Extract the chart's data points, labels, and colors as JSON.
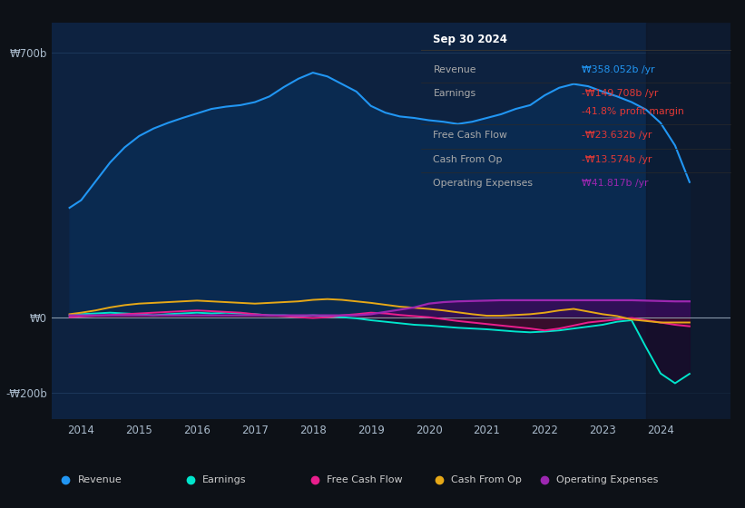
{
  "bg_color": "#0d1117",
  "plot_bg_color": "#0d2240",
  "grid_color": "#1e3a5f",
  "years": [
    2013.8,
    2014.0,
    2014.25,
    2014.5,
    2014.75,
    2015.0,
    2015.25,
    2015.5,
    2015.75,
    2016.0,
    2016.25,
    2016.5,
    2016.75,
    2017.0,
    2017.25,
    2017.5,
    2017.75,
    2018.0,
    2018.25,
    2018.5,
    2018.75,
    2019.0,
    2019.25,
    2019.5,
    2019.75,
    2020.0,
    2020.25,
    2020.5,
    2020.75,
    2021.0,
    2021.25,
    2021.5,
    2021.75,
    2022.0,
    2022.25,
    2022.5,
    2022.75,
    2023.0,
    2023.25,
    2023.5,
    2023.75,
    2024.0,
    2024.25,
    2024.5
  ],
  "revenue": [
    290,
    310,
    360,
    410,
    450,
    480,
    500,
    515,
    528,
    540,
    552,
    558,
    562,
    570,
    585,
    610,
    632,
    648,
    638,
    618,
    598,
    560,
    542,
    532,
    528,
    522,
    518,
    512,
    518,
    528,
    538,
    552,
    562,
    588,
    608,
    618,
    612,
    598,
    585,
    570,
    550,
    515,
    455,
    358
  ],
  "earnings": [
    5,
    8,
    10,
    12,
    10,
    8,
    5,
    8,
    10,
    12,
    10,
    12,
    10,
    8,
    5,
    5,
    3,
    5,
    3,
    0,
    -3,
    -8,
    -12,
    -16,
    -20,
    -22,
    -25,
    -28,
    -30,
    -32,
    -35,
    -38,
    -40,
    -38,
    -35,
    -30,
    -25,
    -20,
    -12,
    -8,
    -80,
    -149,
    -175,
    -150
  ],
  "free_cash_flow": [
    0,
    2,
    4,
    6,
    8,
    10,
    12,
    14,
    16,
    18,
    16,
    14,
    12,
    8,
    5,
    3,
    0,
    -2,
    0,
    5,
    8,
    12,
    10,
    6,
    3,
    0,
    -5,
    -10,
    -14,
    -18,
    -22,
    -26,
    -30,
    -35,
    -30,
    -22,
    -14,
    -10,
    -6,
    -2,
    -8,
    -14,
    -20,
    -24
  ],
  "cash_from_op": [
    8,
    12,
    18,
    26,
    32,
    36,
    38,
    40,
    42,
    44,
    42,
    40,
    38,
    36,
    38,
    40,
    42,
    46,
    48,
    46,
    42,
    38,
    33,
    28,
    25,
    22,
    18,
    13,
    8,
    4,
    4,
    6,
    8,
    12,
    18,
    22,
    15,
    8,
    3,
    -6,
    -10,
    -14,
    -14,
    -14
  ],
  "operating_expenses": [
    5,
    5,
    5,
    5,
    5,
    5,
    5,
    5,
    5,
    5,
    5,
    5,
    5,
    5,
    5,
    5,
    5,
    5,
    5,
    5,
    5,
    8,
    14,
    20,
    26,
    36,
    40,
    42,
    43,
    44,
    45,
    45,
    45,
    45,
    45,
    45,
    45,
    45,
    45,
    45,
    44,
    43,
    42,
    42
  ],
  "revenue_color": "#2196f3",
  "earnings_color": "#00e5cc",
  "fcf_color": "#e91e8c",
  "cashop_color": "#e6a817",
  "opex_color": "#9c27b0",
  "revenue_fill": "#0a2a50",
  "ylim_min": -270,
  "ylim_max": 780,
  "yticks": [
    -200,
    0,
    700
  ],
  "ytick_labels": [
    "-₩200b",
    "₩0",
    "₩700b"
  ],
  "xlim_min": 2013.5,
  "xlim_max": 2025.2,
  "xticks": [
    2014,
    2015,
    2016,
    2017,
    2018,
    2019,
    2020,
    2021,
    2022,
    2023,
    2024
  ],
  "tooltip": {
    "title": "Sep 30 2024",
    "rows": [
      {
        "label": "Revenue",
        "value": "₩358.052b /yr",
        "value_color": "#2196f3"
      },
      {
        "label": "Earnings",
        "value": "-₩149.708b /yr",
        "value_color": "#e53935"
      },
      {
        "label": "",
        "value": "-41.8% profit margin",
        "value_color": "#e53935"
      },
      {
        "label": "Free Cash Flow",
        "value": "-₩23.632b /yr",
        "value_color": "#e53935"
      },
      {
        "label": "Cash From Op",
        "value": "-₩13.574b /yr",
        "value_color": "#e53935"
      },
      {
        "label": "Operating Expenses",
        "value": "₩41.817b /yr",
        "value_color": "#9c27b0"
      }
    ]
  },
  "legend_items": [
    {
      "label": "Revenue",
      "color": "#2196f3"
    },
    {
      "label": "Earnings",
      "color": "#00e5cc"
    },
    {
      "label": "Free Cash Flow",
      "color": "#e91e8c"
    },
    {
      "label": "Cash From Op",
      "color": "#e6a817"
    },
    {
      "label": "Operating Expenses",
      "color": "#9c27b0"
    }
  ]
}
